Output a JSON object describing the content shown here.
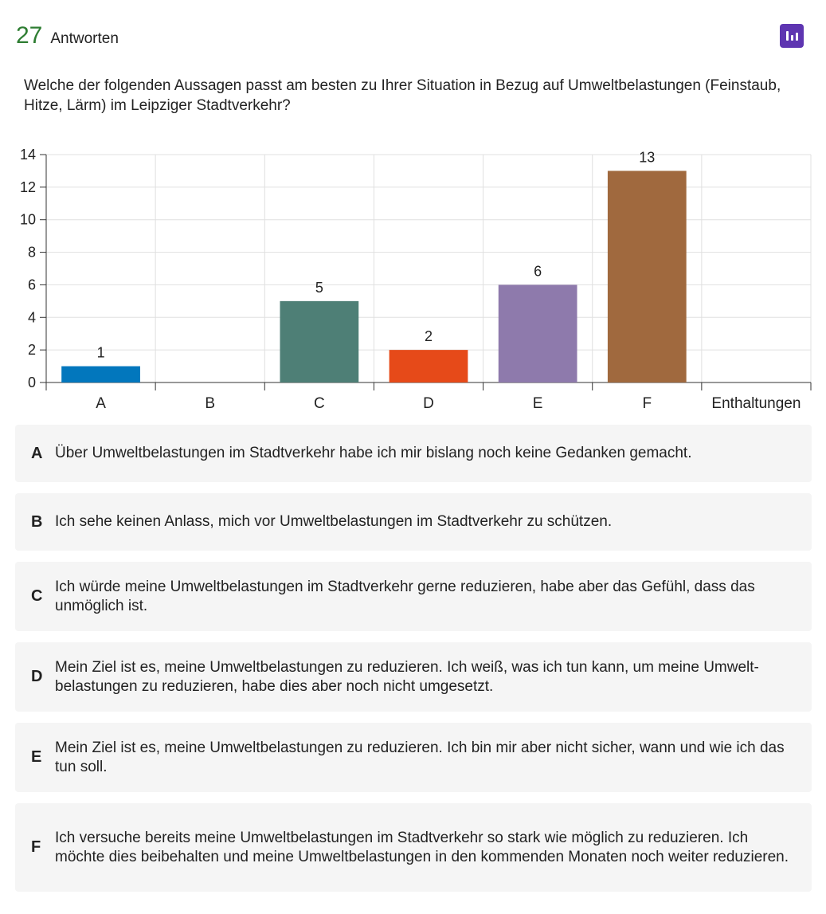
{
  "header": {
    "count": "27",
    "count_label": "Antworten",
    "chart_icon": "bar-chart-icon"
  },
  "question": "Welche der folgenden Aussagen passt am besten zu Ihrer Situation in Bezug auf Umweltbelastungen (Fein­staub, Hitze, Lärm) im Leipziger Stadtverkehr?",
  "chart_data": {
    "type": "bar",
    "categories": [
      "A",
      "B",
      "C",
      "D",
      "E",
      "F",
      "Enthaltungen"
    ],
    "values": [
      1,
      0,
      5,
      2,
      6,
      13,
      0
    ],
    "data_labels": [
      "1",
      "",
      "5",
      "2",
      "6",
      "13",
      ""
    ],
    "colors": [
      "#0277bd",
      "#9e9e9e",
      "#4e7f76",
      "#e64a19",
      "#8e7aac",
      "#a0693e",
      "#9e9e9e"
    ],
    "ylim": [
      0,
      14
    ],
    "yticks": [
      0,
      2,
      4,
      6,
      8,
      10,
      12,
      14
    ],
    "grid": true,
    "title": "",
    "xlabel": "",
    "ylabel": ""
  },
  "legend": [
    {
      "letter": "A",
      "text": "Über Umweltbelastungen im Stadtverkehr habe ich mir bislang noch keine Gedanken gemacht."
    },
    {
      "letter": "B",
      "text": "Ich sehe keinen Anlass, mich vor Umweltbelastungen im Stadtverkehr zu schützen."
    },
    {
      "letter": "C",
      "text": "Ich würde meine Umweltbelastungen im Stadtverkehr gerne reduzieren, habe aber das Gefühl, dass das unmöglich ist."
    },
    {
      "letter": "D",
      "text": "Mein Ziel ist es, meine Umweltbelastungen zu reduzieren. Ich weiß, was ich tun kann, um meine Umwelt­belastungen zu reduzieren, habe dies aber noch nicht umgesetzt."
    },
    {
      "letter": "E",
      "text": "Mein Ziel ist es, meine Umweltbelastungen zu reduzieren. Ich bin mir aber nicht sicher, wann und wie ich das tun soll."
    },
    {
      "letter": "F",
      "text": "Ich versuche bereits meine Umweltbelastungen im Stadtverkehr so stark wie möglich zu reduzieren. Ich möchte dies beibehalten und meine Umweltbelastungen in den kommenden Monaten noch weiter redu­zieren."
    }
  ]
}
